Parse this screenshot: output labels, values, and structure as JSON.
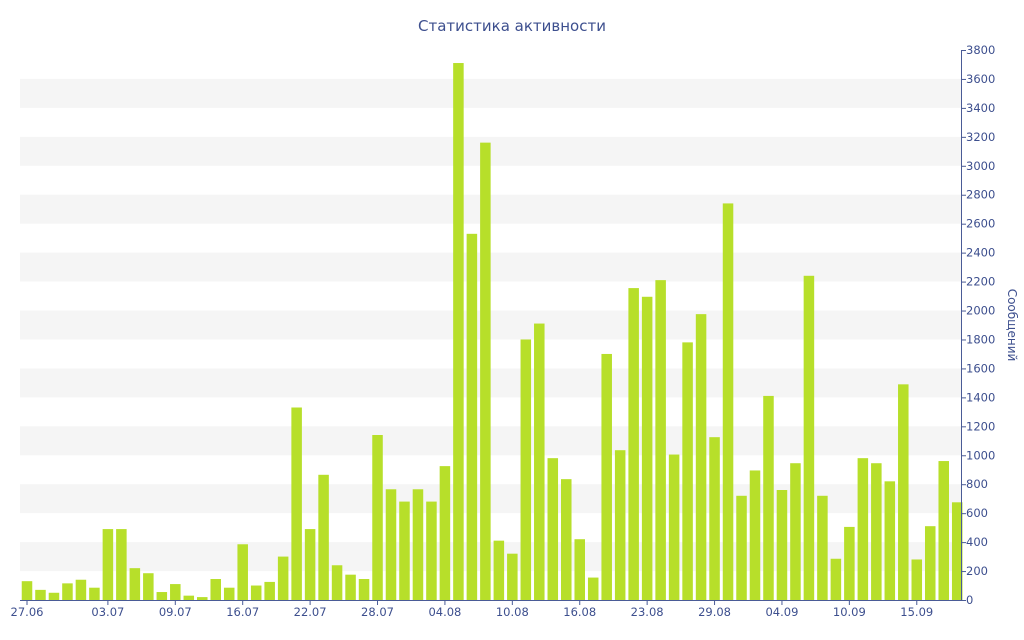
{
  "chart_data": {
    "type": "bar",
    "title": "Статистика активности",
    "xlabel": "",
    "ylabel": "Сообщений",
    "ylim": [
      0,
      3800
    ],
    "y_ticks": [
      0,
      200,
      400,
      600,
      800,
      1000,
      1200,
      1400,
      1600,
      1800,
      2000,
      2200,
      2400,
      2600,
      2800,
      3000,
      3200,
      3400,
      3600,
      3800
    ],
    "y_axis_side": "right",
    "grid": "alternating horizontal bands",
    "legend": "none",
    "x_tick_labels": [
      "27.06",
      "03.07",
      "09.07",
      "16.07",
      "22.07",
      "28.07",
      "04.08",
      "10.08",
      "16.08",
      "23.08",
      "29.08",
      "04.09",
      "10.09",
      "15.09"
    ],
    "x_tick_bar_index": [
      0,
      6,
      11,
      16,
      21,
      26,
      31,
      36,
      41,
      46,
      51,
      56,
      61,
      66
    ],
    "values": [
      130,
      70,
      50,
      115,
      140,
      85,
      490,
      490,
      220,
      185,
      55,
      110,
      30,
      20,
      145,
      85,
      385,
      100,
      125,
      300,
      1330,
      490,
      865,
      240,
      175,
      145,
      1140,
      765,
      680,
      765,
      680,
      925,
      3710,
      2530,
      3160,
      410,
      320,
      1800,
      1910,
      980,
      835,
      420,
      155,
      1700,
      1035,
      2155,
      2095,
      2210,
      1005,
      1780,
      1975,
      1125,
      2740,
      720,
      895,
      1410,
      760,
      945,
      2240,
      720,
      285,
      505,
      980,
      945,
      820,
      1490,
      280,
      510,
      960,
      675
    ],
    "colors": {
      "bar": "#b7df2a",
      "band": "#f5f5f5",
      "axis": "#4a5b96",
      "text": "#3d4f8e"
    }
  }
}
